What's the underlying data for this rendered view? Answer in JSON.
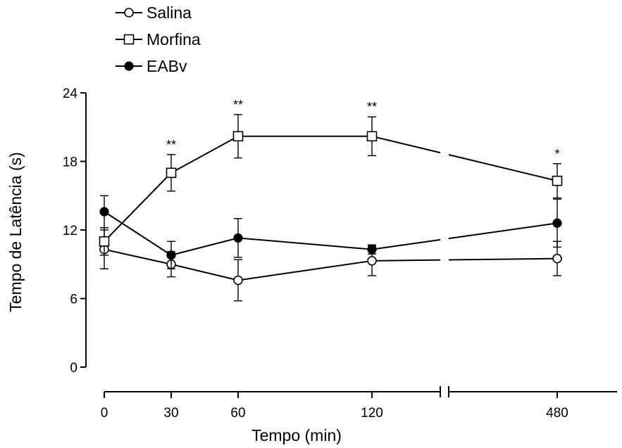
{
  "chart_data": {
    "type": "line",
    "xlabel": "Tempo (min)",
    "ylabel": "Tempo de Latência (s)",
    "ylim": [
      0,
      24
    ],
    "yticks": [
      "0",
      "6",
      "12",
      "18",
      "24"
    ],
    "x": [
      0,
      30,
      60,
      120,
      480
    ],
    "xtick_labels": [
      "0",
      "30",
      "60",
      "120",
      "480"
    ],
    "x_axis_break": "between 120 and 480",
    "legend_position": "top-left",
    "series": [
      {
        "name": "Salina",
        "marker": "open-circle",
        "values": [
          10.3,
          9.0,
          7.6,
          9.3,
          9.5
        ],
        "errors": [
          1.7,
          1.1,
          1.8,
          1.3,
          1.5
        ]
      },
      {
        "name": "Morfina",
        "marker": "open-square",
        "values": [
          11.0,
          17.0,
          20.2,
          20.2,
          16.3
        ],
        "errors": [
          1.2,
          1.6,
          1.9,
          1.7,
          1.5
        ]
      },
      {
        "name": "EABv",
        "marker": "filled-circle",
        "values": [
          13.6,
          9.8,
          11.3,
          10.3,
          12.6
        ],
        "errors": [
          1.4,
          1.2,
          1.7,
          0.4,
          2.1
        ]
      }
    ],
    "annotations": [
      {
        "x": 30,
        "text": "**"
      },
      {
        "x": 60,
        "text": "**"
      },
      {
        "x": 120,
        "text": "**"
      },
      {
        "x": 480,
        "text": "*"
      }
    ]
  }
}
